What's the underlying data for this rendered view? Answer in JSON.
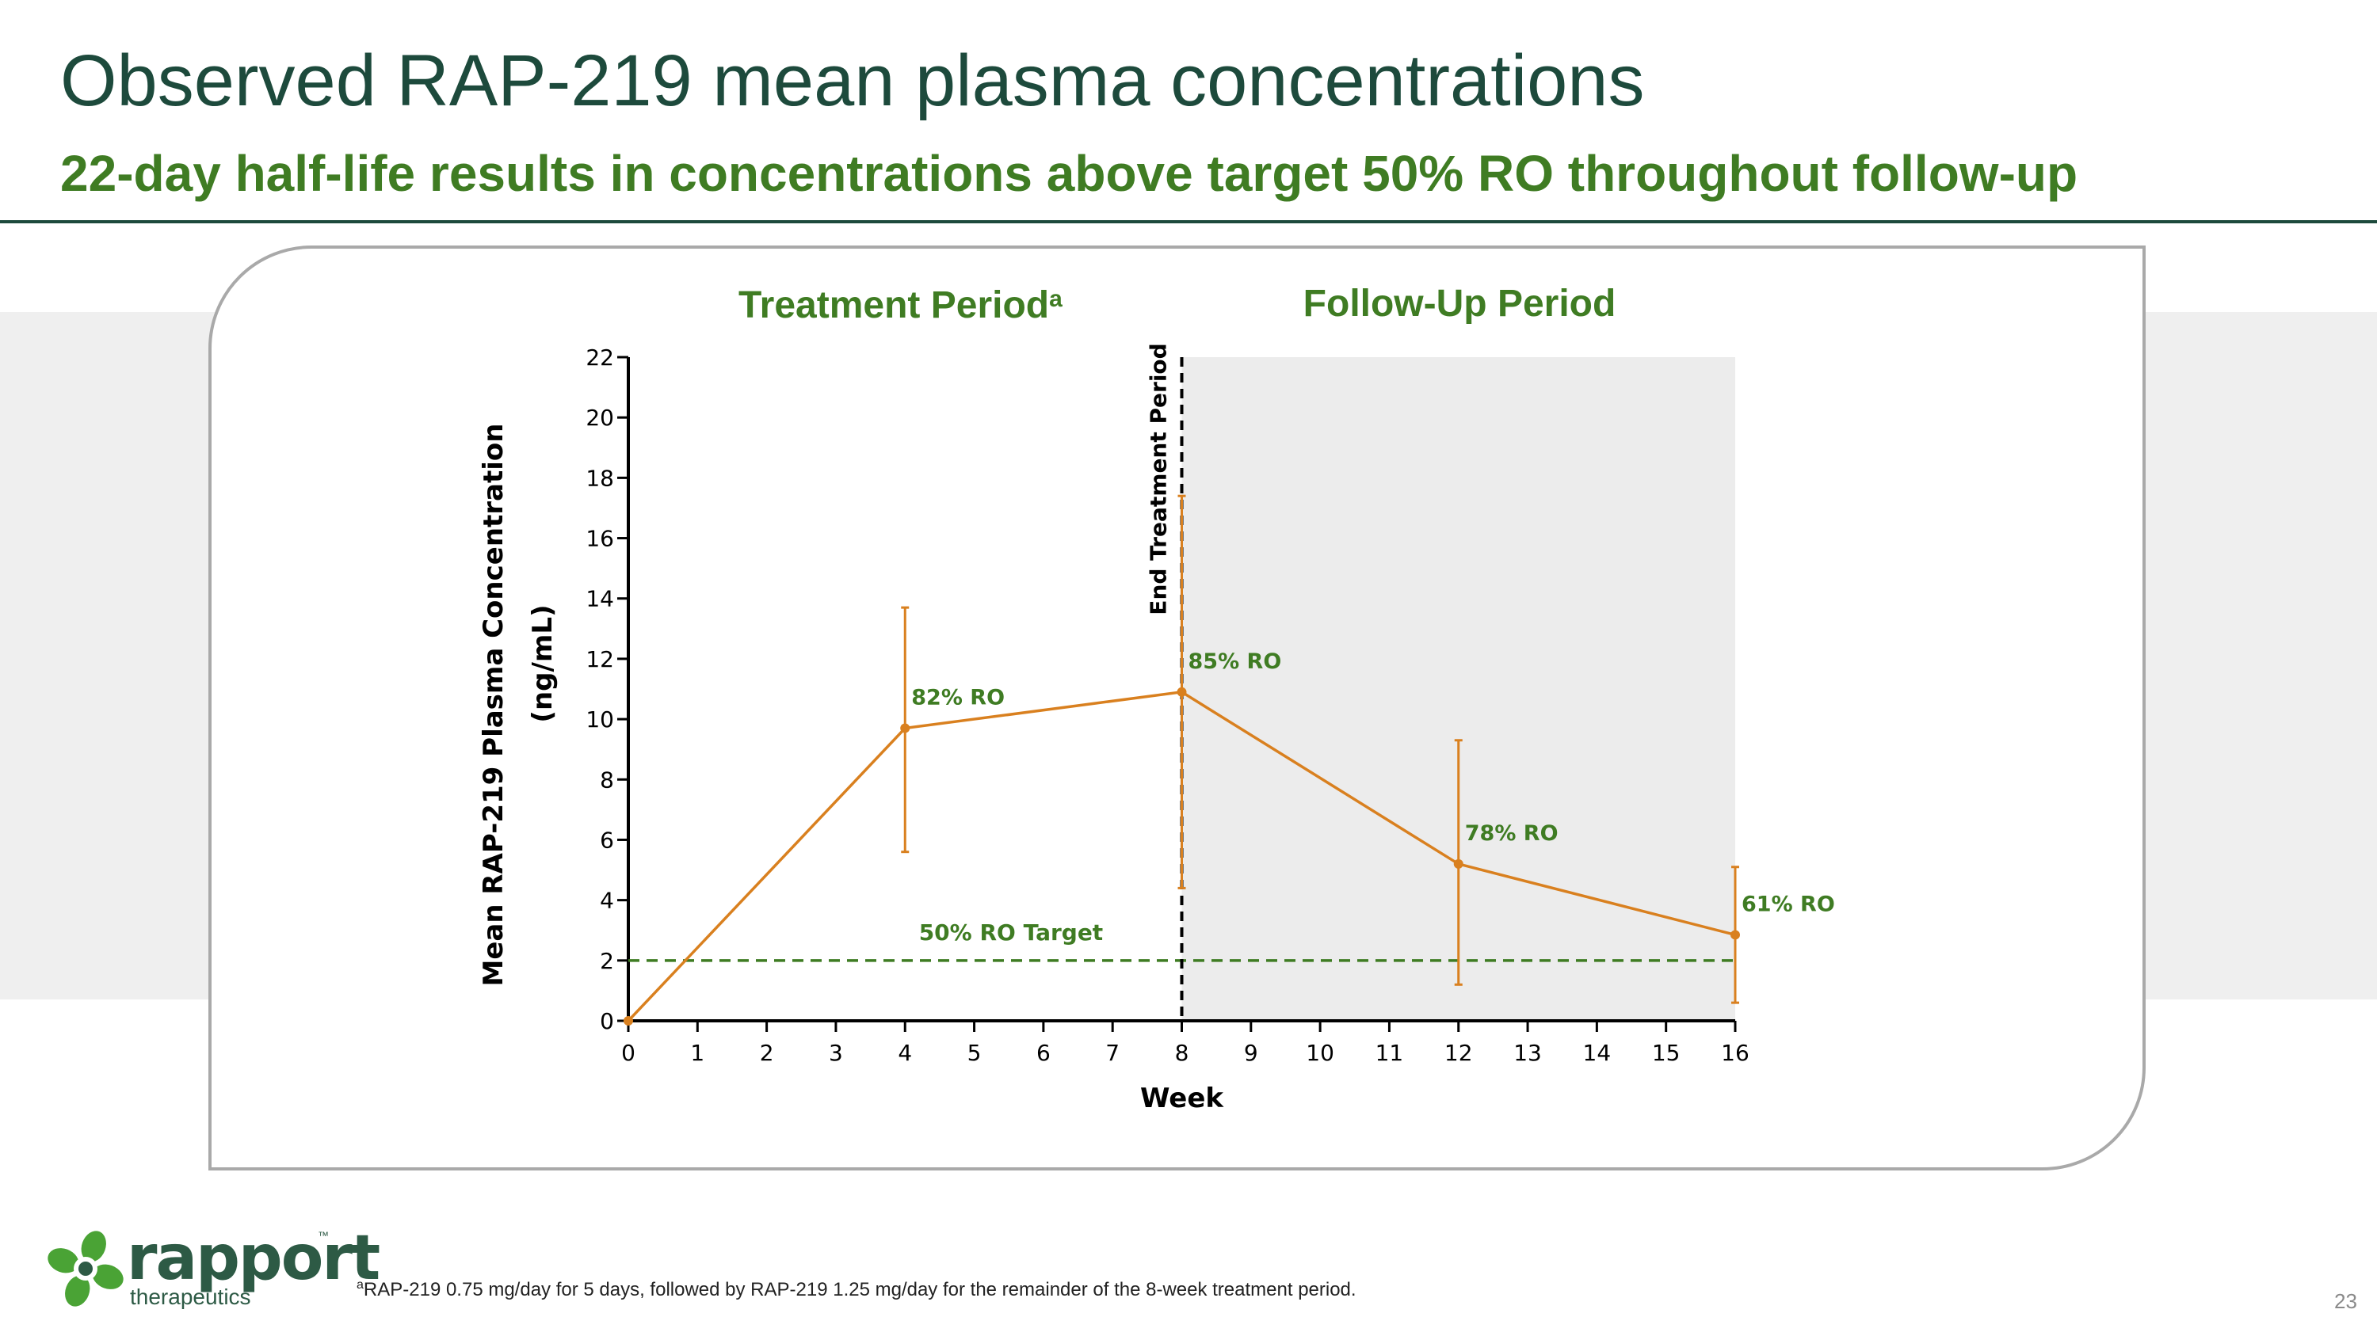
{
  "title": "Observed RAP-219 mean plasma concentrations",
  "subtitle": "22-day half-life results in concentrations above target 50% RO throughout follow-up",
  "colors": {
    "title": "#1d4a3c",
    "accent_green": "#3f7c23",
    "series": "#d9801f",
    "follow_up_shade": "#ececec",
    "target_line": "#3f7c23"
  },
  "chart_data": {
    "type": "line",
    "ylabel_line1": "Mean  RAP-219 Plasma Concentration",
    "ylabel_line2": "(ng/mL)",
    "xlabel": "Week",
    "xlim": [
      0,
      16
    ],
    "ylim": [
      0,
      22
    ],
    "x_ticks": [
      0,
      1,
      2,
      3,
      4,
      5,
      6,
      7,
      8,
      9,
      10,
      11,
      12,
      13,
      14,
      15,
      16
    ],
    "y_ticks": [
      0,
      2,
      4,
      6,
      8,
      10,
      12,
      14,
      16,
      18,
      20,
      22
    ],
    "series": [
      {
        "x": [
          0,
          4,
          8,
          12,
          16
        ],
        "y": [
          0,
          9.7,
          10.9,
          5.2,
          2.85
        ],
        "err_low": [
          0,
          5.6,
          4.4,
          1.2,
          0.6
        ],
        "err_high": [
          0,
          13.7,
          17.4,
          9.3,
          5.1
        ],
        "labels": [
          "",
          "82% RO",
          "85% RO",
          "78% RO",
          "61% RO"
        ]
      }
    ],
    "target_line": {
      "y": 2,
      "label": "50% RO Target"
    },
    "end_treatment": {
      "x": 8,
      "label": "End Treatment Period"
    },
    "periods": {
      "treatment": "Treatment Period",
      "treatment_sup": "a",
      "follow_up": "Follow-Up Period",
      "follow_up_range": [
        8,
        16
      ]
    },
    "grid": false
  },
  "logo": {
    "word": "rapport",
    "tm": "™",
    "sub": "therapeutics"
  },
  "footnote": {
    "sup": "a",
    "text": "RAP-219 0.75 mg/day for 5 days, followed by RAP-219 1.25 mg/day for the remainder of the 8-week treatment period."
  },
  "page_number": "23"
}
